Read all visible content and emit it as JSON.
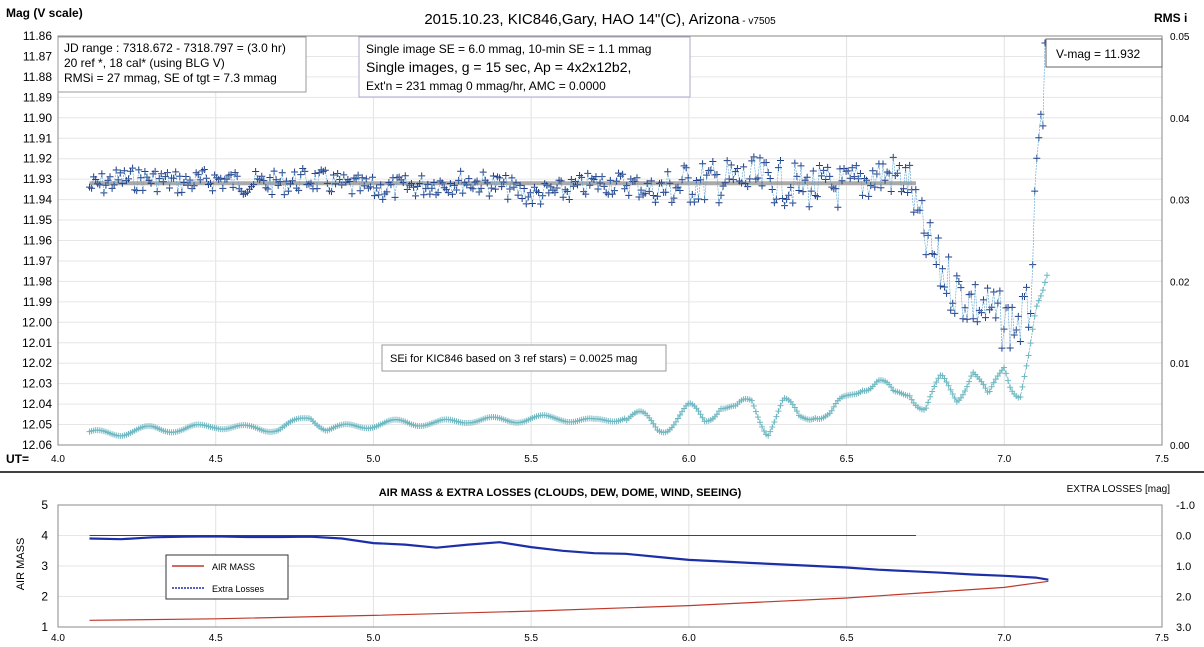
{
  "chart_data": [
    {
      "type": "scatter",
      "title": "2015.10.23,  KIC846,Gary, HAO  14\"(C), Arizona",
      "title_version": " - v7505",
      "ylabel_left": "Mag (V scale)",
      "ylabel_right": "RMS i",
      "xlabel": "UT=",
      "xlim": [
        4.0,
        7.5
      ],
      "x_ticks": [
        "4.0",
        "4.5",
        "5.0",
        "5.5",
        "6.0",
        "6.5",
        "7.0",
        "7.5"
      ],
      "ylim_left": [
        11.86,
        12.06
      ],
      "y_ticks_left": [
        "11.86",
        "11.87",
        "11.88",
        "11.89",
        "11.90",
        "11.91",
        "11.92",
        "11.93",
        "11.94",
        "11.95",
        "11.96",
        "11.97",
        "11.98",
        "11.99",
        "12.00",
        "12.01",
        "12.02",
        "12.03",
        "12.04",
        "12.05",
        "12.06"
      ],
      "ylim_right": [
        0.0,
        0.05
      ],
      "y_ticks_right": [
        "0.05",
        "0.04",
        "0.03",
        "0.02",
        "0.01",
        "0.00"
      ],
      "grid": true,
      "info_box_1": [
        "JD range  : 7318.672 - 7318.797  = (3.0 hr)",
        "20 ref *, 18 cal* (using BLG V)",
        "RMSi = 27 mmag, SE of tgt = 7.3 mmag"
      ],
      "info_box_2": [
        "Single image SE = 6.0 mmag, 10-min SE = 1.1 mmag",
        "Single images, g = 15 sec, Ap = 4x2x12b2,",
        "Ext'n = 231 mmag 0 mmag/hr, AMC = 0.0000"
      ],
      "info_box_3": "V-mag = 11.932",
      "annotation": "SEi for KIC846 based on 3 ref stars) = 0.0025 mag",
      "series": [
        {
          "name": "V-mag",
          "color": "#1f3c88",
          "x": [
            4.1,
            4.2,
            4.3,
            4.4,
            4.5,
            4.6,
            4.7,
            4.8,
            4.9,
            5.0,
            5.1,
            5.2,
            5.3,
            5.4,
            5.5,
            5.6,
            5.7,
            5.8,
            5.9,
            5.95,
            6.0,
            6.1,
            6.2,
            6.3,
            6.4,
            6.5,
            6.6,
            6.65,
            6.7,
            6.72,
            6.75,
            6.8,
            6.85,
            6.9,
            6.95,
            7.0,
            7.05,
            7.08,
            7.1,
            7.12,
            7.13
          ],
          "values": [
            11.934,
            11.93,
            11.93,
            11.932,
            11.93,
            11.932,
            11.932,
            11.93,
            11.933,
            11.935,
            11.934,
            11.932,
            11.931,
            11.933,
            11.938,
            11.936,
            11.932,
            11.932,
            11.936,
            11.934,
            11.932,
            11.931,
            11.93,
            11.932,
            11.934,
            11.934,
            11.928,
            11.928,
            11.932,
            11.945,
            11.96,
            11.975,
            11.985,
            11.99,
            11.995,
            12.0,
            12.0,
            11.995,
            11.94,
            11.895,
            11.875
          ]
        },
        {
          "name": "RMSi",
          "color": "#6fb8c2",
          "x": [
            4.1,
            4.2,
            4.3,
            4.4,
            4.5,
            4.6,
            4.7,
            4.8,
            4.85,
            4.9,
            5.0,
            5.1,
            5.2,
            5.3,
            5.4,
            5.5,
            5.6,
            5.7,
            5.8,
            5.9,
            6.0,
            6.05,
            6.1,
            6.15,
            6.2,
            6.25,
            6.3,
            6.35,
            6.4,
            6.45,
            6.5,
            6.55,
            6.6,
            6.65,
            6.7,
            6.75,
            6.8,
            6.85,
            6.9,
            6.95,
            7.0,
            7.02,
            7.05,
            7.08,
            7.1,
            7.12,
            7.14
          ],
          "values": [
            0.0014,
            0.0015,
            0.002,
            0.0019,
            0.0024,
            0.002,
            0.002,
            0.0034,
            0.002,
            0.0021,
            0.0025,
            0.0028,
            0.0026,
            0.0031,
            0.003,
            0.0032,
            0.0033,
            0.0028,
            0.0035,
            0.0023,
            0.004,
            0.003,
            0.0055,
            0.0038,
            0.0052,
            0.0022,
            0.005,
            0.003,
            0.0045,
            0.0035,
            0.0052,
            0.0078,
            0.0078,
            0.0055,
            0.007,
            0.0045,
            0.0075,
            0.006,
            0.0095,
            0.005,
            0.01,
            0.008,
            0.0065,
            0.011,
            0.0155,
            0.0175,
            0.021
          ]
        },
        {
          "name": "Mean",
          "color": "#aaaaaa",
          "x": [
            4.1,
            6.72
          ],
          "values": [
            11.932,
            11.932
          ]
        }
      ]
    },
    {
      "type": "line",
      "title": "AIR MASS & EXTRA LOSSES (CLOUDS, DEW, DOME, WIND, SEEING)",
      "ylabel_left": "AIR MASS",
      "ylabel_right": "EXTRA LOSSES [mag]",
      "xlim": [
        4.0,
        7.5
      ],
      "x_ticks": [
        "4.0",
        "4.5",
        "5.0",
        "5.5",
        "6.0",
        "6.5",
        "7.0",
        "7.5"
      ],
      "ylim_left": [
        1,
        5
      ],
      "y_ticks_left": [
        "5",
        "4",
        "3",
        "2",
        "1"
      ],
      "ylim_right": [
        -1.0,
        3.0
      ],
      "y_ticks_right": [
        "-1.0",
        "0.0",
        "1.0",
        "2.0",
        "3.0"
      ],
      "grid": true,
      "legend": [
        "AIR MASS",
        "Extra Losses"
      ],
      "legend_position": "left",
      "series": [
        {
          "name": "AIR MASS",
          "color": "#c0392b",
          "x": [
            4.1,
            4.5,
            5.0,
            5.5,
            6.0,
            6.5,
            7.0,
            7.14
          ],
          "values": [
            1.22,
            1.27,
            1.38,
            1.52,
            1.7,
            1.95,
            2.3,
            2.5
          ]
        },
        {
          "name": "Extra Losses",
          "color": "#1c2fa8",
          "x": [
            4.1,
            4.2,
            4.3,
            4.4,
            4.5,
            4.6,
            4.7,
            4.8,
            4.9,
            5.0,
            5.1,
            5.2,
            5.3,
            5.4,
            5.5,
            5.6,
            5.7,
            5.8,
            5.9,
            6.0,
            6.1,
            6.2,
            6.3,
            6.4,
            6.5,
            6.6,
            6.7,
            6.8,
            6.9,
            7.0,
            7.1,
            7.14
          ],
          "values": [
            0.1,
            0.12,
            0.06,
            0.04,
            0.03,
            0.05,
            0.05,
            0.04,
            0.1,
            0.25,
            0.3,
            0.4,
            0.3,
            0.22,
            0.38,
            0.5,
            0.58,
            0.6,
            0.7,
            0.8,
            0.85,
            0.9,
            0.95,
            1.0,
            1.05,
            1.12,
            1.17,
            1.22,
            1.28,
            1.32,
            1.38,
            1.45
          ]
        },
        {
          "name": "Baseline",
          "color": "#34495e",
          "x": [
            4.1,
            6.72
          ],
          "values": [
            0.0,
            0.0
          ]
        }
      ]
    }
  ]
}
